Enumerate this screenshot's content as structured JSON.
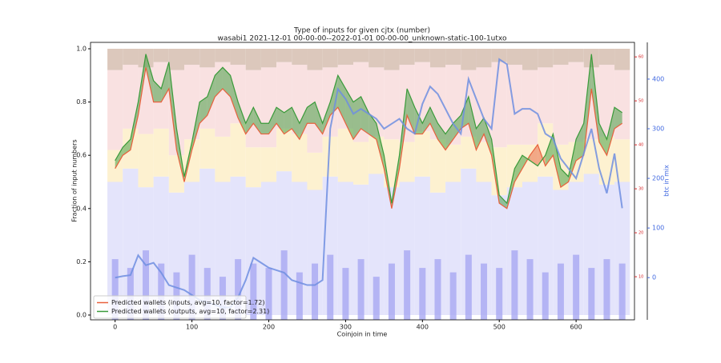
{
  "chart_data": {
    "type": "line",
    "title": "Type of inputs for given cjtx (number)",
    "subtitle": "wasabi1 2021-12-01 00-00-00--2022-01-01 00-00-00_unknown-static-100-1utxo",
    "x_label": "Coinjoin in time",
    "y_label": "Fraction of input numbers",
    "y3_label": "btc in mix",
    "xlim": [
      -32,
      676
    ],
    "xticks": [
      0,
      100,
      200,
      300,
      400,
      500,
      600
    ],
    "ylim": [
      -0.018,
      1.024
    ],
    "yticks": [
      {
        "value": 0,
        "label": "0.0"
      },
      {
        "value": 0.2,
        "label": "0.2"
      },
      {
        "value": 0.4,
        "label": "0.4"
      },
      {
        "value": 0.6,
        "label": "0.6"
      },
      {
        "value": 0.8,
        "label": "0.8"
      },
      {
        "value": 1,
        "label": "1.0"
      }
    ],
    "y2lim": [
      0.2,
      63.3
    ],
    "y2ticks": [
      10,
      20,
      30,
      40,
      50,
      60
    ],
    "y2color": "#d62728",
    "y3lim": [
      -85,
      474
    ],
    "y3ticks": [
      0,
      100,
      200,
      300,
      400
    ],
    "y3color": "#4169e1",
    "legend": "lower left",
    "x": [
      0,
      10,
      20,
      30,
      40,
      50,
      60,
      70,
      80,
      90,
      100,
      110,
      120,
      130,
      140,
      150,
      160,
      170,
      180,
      190,
      200,
      210,
      220,
      230,
      240,
      250,
      260,
      270,
      280,
      290,
      300,
      310,
      320,
      330,
      340,
      350,
      360,
      370,
      380,
      390,
      400,
      410,
      420,
      430,
      440,
      450,
      460,
      470,
      480,
      490,
      500,
      510,
      520,
      530,
      540,
      550,
      560,
      570,
      580,
      590,
      600,
      610,
      620,
      630,
      640,
      650,
      660
    ],
    "series": [
      {
        "name": "Predicted wallets (inputs, avg=10, factor=1.72)",
        "color": "#e8603c",
        "axis": "y",
        "values": [
          0.55,
          0.6,
          0.62,
          0.75,
          0.93,
          0.8,
          0.8,
          0.85,
          0.62,
          0.5,
          0.62,
          0.72,
          0.75,
          0.82,
          0.85,
          0.82,
          0.74,
          0.68,
          0.72,
          0.68,
          0.68,
          0.72,
          0.68,
          0.7,
          0.66,
          0.72,
          0.72,
          0.68,
          0.75,
          0.78,
          0.72,
          0.66,
          0.7,
          0.68,
          0.66,
          0.55,
          0.4,
          0.55,
          0.75,
          0.68,
          0.68,
          0.72,
          0.66,
          0.62,
          0.66,
          0.7,
          0.72,
          0.62,
          0.68,
          0.6,
          0.42,
          0.4,
          0.5,
          0.55,
          0.6,
          0.64,
          0.56,
          0.6,
          0.48,
          0.5,
          0.58,
          0.6,
          0.85,
          0.65,
          0.6,
          0.7,
          0.72
        ]
      },
      {
        "name": "Predicted wallets (outputs, avg=10, factor=2.31)",
        "color": "#3a9a3a",
        "axis": "y",
        "values": [
          0.58,
          0.63,
          0.66,
          0.8,
          0.98,
          0.88,
          0.85,
          0.95,
          0.7,
          0.52,
          0.65,
          0.8,
          0.82,
          0.9,
          0.93,
          0.9,
          0.8,
          0.72,
          0.78,
          0.72,
          0.72,
          0.78,
          0.76,
          0.78,
          0.72,
          0.78,
          0.8,
          0.72,
          0.8,
          0.9,
          0.85,
          0.8,
          0.82,
          0.76,
          0.72,
          0.6,
          0.42,
          0.6,
          0.85,
          0.78,
          0.72,
          0.78,
          0.72,
          0.68,
          0.72,
          0.75,
          0.82,
          0.7,
          0.74,
          0.66,
          0.45,
          0.42,
          0.55,
          0.6,
          0.58,
          0.56,
          0.6,
          0.68,
          0.55,
          0.52,
          0.66,
          0.72,
          0.98,
          0.72,
          0.66,
          0.78,
          0.76
        ]
      },
      {
        "color": "#6f8ee0",
        "axis": "y3",
        "values": [
          0,
          3,
          5,
          45,
          25,
          30,
          10,
          -15,
          -20,
          -25,
          -35,
          -45,
          -50,
          -55,
          -60,
          -60,
          -40,
          -5,
          40,
          30,
          20,
          15,
          10,
          -5,
          -10,
          -15,
          -15,
          -5,
          300,
          380,
          360,
          330,
          340,
          330,
          320,
          300,
          310,
          320,
          300,
          290,
          350,
          385,
          370,
          340,
          310,
          290,
          400,
          360,
          320,
          300,
          440,
          430,
          330,
          340,
          340,
          330,
          290,
          280,
          240,
          220,
          200,
          250,
          300,
          220,
          170,
          250,
          140
        ]
      }
    ],
    "stack_x": [
      0,
      20,
      40,
      60,
      80,
      100,
      120,
      140,
      160,
      180,
      200,
      220,
      240,
      260,
      280,
      300,
      320,
      340,
      360,
      380,
      400,
      420,
      440,
      460,
      480,
      500,
      520,
      540,
      560,
      580,
      600,
      620,
      640,
      660
    ],
    "stacks": [
      {
        "color": "#e4e4fb",
        "values": [
          0.5,
          0.55,
          0.48,
          0.52,
          0.46,
          0.5,
          0.55,
          0.5,
          0.52,
          0.48,
          0.5,
          0.54,
          0.5,
          0.47,
          0.52,
          0.5,
          0.49,
          0.53,
          0.48,
          0.5,
          0.52,
          0.46,
          0.5,
          0.55,
          0.5,
          0.45,
          0.48,
          0.5,
          0.52,
          0.47,
          0.5,
          0.53,
          0.49,
          0.5
        ]
      },
      {
        "color": "#fdf1d0",
        "values": [
          0.12,
          0.15,
          0.2,
          0.18,
          0.14,
          0.16,
          0.15,
          0.17,
          0.2,
          0.15,
          0.13,
          0.16,
          0.18,
          0.14,
          0.15,
          0.2,
          0.16,
          0.14,
          0.18,
          0.15,
          0.17,
          0.2,
          0.14,
          0.12,
          0.15,
          0.18,
          0.16,
          0.14,
          0.2,
          0.17,
          0.15,
          0.13,
          0.18,
          0.16
        ]
      },
      {
        "color": "#f9e1e1",
        "values": [
          0.3,
          0.24,
          0.25,
          0.25,
          0.32,
          0.28,
          0.23,
          0.28,
          0.22,
          0.29,
          0.3,
          0.25,
          0.26,
          0.31,
          0.26,
          0.24,
          0.3,
          0.26,
          0.26,
          0.29,
          0.26,
          0.27,
          0.3,
          0.25,
          0.28,
          0.32,
          0.3,
          0.28,
          0.21,
          0.3,
          0.3,
          0.27,
          0.27,
          0.26
        ]
      },
      {
        "color": "#dcc8bc",
        "values": [
          0.08,
          0.06,
          0.07,
          0.05,
          0.08,
          0.06,
          0.07,
          0.05,
          0.06,
          0.08,
          0.07,
          0.05,
          0.06,
          0.08,
          0.07,
          0.06,
          0.05,
          0.07,
          0.08,
          0.06,
          0.05,
          0.07,
          0.06,
          0.08,
          0.07,
          0.05,
          0.06,
          0.08,
          0.07,
          0.06,
          0.05,
          0.07,
          0.06,
          0.08
        ]
      }
    ],
    "counts": {
      "color": "#a7a7f2",
      "axis": "y2",
      "values": [
        14,
        12,
        16,
        13,
        11,
        15,
        12,
        10,
        14,
        13,
        12,
        16,
        11,
        13,
        15,
        12,
        14,
        10,
        13,
        16,
        12,
        14,
        11,
        15,
        13,
        12,
        16,
        14,
        11,
        13,
        15,
        12,
        14,
        13
      ]
    }
  }
}
